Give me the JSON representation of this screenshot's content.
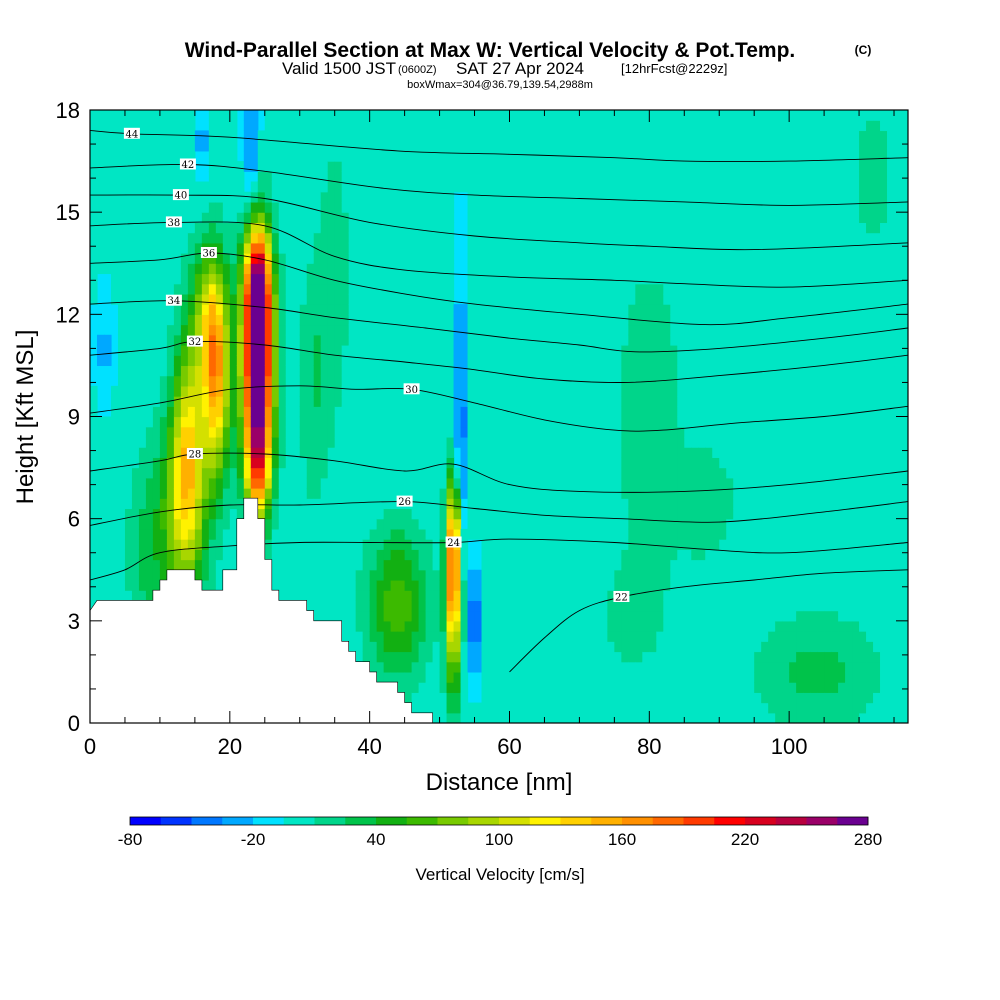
{
  "title": {
    "main": "Wind-Parallel Section at Max W: Vertical Velocity & Pot.Temp.",
    "main_units": "(C)",
    "valid_prefix": "Valid 1500 JST",
    "valid_utc": "(0600Z)",
    "valid_date": "SAT 27 Apr 2024",
    "forecast": "[12hrFcst@2229z]",
    "box_info": "boxWmax=304@36.79,139.54,2988m"
  },
  "chart_data": {
    "type": "heatmap",
    "xlabel": "Distance [nm]",
    "ylabel": "Height [Kft MSL]",
    "xlim": [
      0,
      117
    ],
    "ylim": [
      0,
      18
    ],
    "x_ticks": [
      0,
      20,
      40,
      60,
      80,
      100
    ],
    "x_tick_labels": [
      "0",
      "20",
      "40",
      "60",
      "80",
      "100"
    ],
    "y_ticks": [
      0,
      3,
      6,
      9,
      12,
      15,
      18
    ],
    "y_tick_labels": [
      "0",
      "3",
      "6",
      "9",
      "12",
      "15",
      "18"
    ],
    "colorbar": {
      "label": "Vertical Velocity [cm/s]",
      "tick_labels": [
        "-80",
        "-20",
        "40",
        "100",
        "160",
        "220",
        "280"
      ],
      "colors": [
        "#0000ff",
        "#0033ff",
        "#0077ff",
        "#00a8ff",
        "#00e1ff",
        "#00e6c4",
        "#00d58a",
        "#00c34a",
        "#12b012",
        "#3cba00",
        "#78ca00",
        "#a8d600",
        "#d4e000",
        "#fff200",
        "#ffd000",
        "#ffb000",
        "#ff9000",
        "#ff6800",
        "#ff3a00",
        "#ff0000",
        "#d8001e",
        "#b8003e",
        "#9a0068",
        "#6a0090"
      ]
    },
    "background_color": "#00e1ff",
    "terrain": {
      "label": "terrain",
      "profile": [
        [
          0,
          3.3
        ],
        [
          1,
          3.6
        ],
        [
          3,
          3.6
        ],
        [
          9,
          3.6
        ],
        [
          9,
          3.9
        ],
        [
          10,
          3.9
        ],
        [
          10,
          4.2
        ],
        [
          11,
          4.2
        ],
        [
          11,
          4.5
        ],
        [
          15,
          4.5
        ],
        [
          15,
          4.2
        ],
        [
          16,
          4.2
        ],
        [
          16,
          3.9
        ],
        [
          19,
          3.9
        ],
        [
          19,
          4.5
        ],
        [
          21,
          4.5
        ],
        [
          21,
          6.0
        ],
        [
          22,
          6.0
        ],
        [
          22,
          6.6
        ],
        [
          24,
          6.6
        ],
        [
          24,
          6.0
        ],
        [
          25,
          6.0
        ],
        [
          25,
          4.8
        ],
        [
          26,
          4.8
        ],
        [
          26,
          3.9
        ],
        [
          27,
          3.9
        ],
        [
          27,
          3.6
        ],
        [
          31,
          3.6
        ],
        [
          31,
          3.3
        ],
        [
          32,
          3.3
        ],
        [
          32,
          3.0
        ],
        [
          36,
          3.0
        ],
        [
          36,
          2.4
        ],
        [
          37,
          2.4
        ],
        [
          37,
          2.1
        ],
        [
          38,
          2.1
        ],
        [
          38,
          1.8
        ],
        [
          40,
          1.8
        ],
        [
          40,
          1.5
        ],
        [
          41,
          1.5
        ],
        [
          41,
          1.2
        ],
        [
          44,
          1.2
        ],
        [
          44,
          0.9
        ],
        [
          45,
          0.9
        ],
        [
          45,
          0.6
        ],
        [
          46,
          0.6
        ],
        [
          46,
          0.3
        ],
        [
          49,
          0.3
        ],
        [
          49,
          0.0
        ]
      ]
    },
    "w_features": [
      {
        "x": 24,
        "z": 10.5,
        "sx": 1.5,
        "sz": 2.2,
        "w": 300
      },
      {
        "x": 24,
        "z": 13.0,
        "sx": 1.3,
        "sz": 1.2,
        "w": 150
      },
      {
        "x": 24,
        "z": 7.5,
        "sx": 1.2,
        "sz": 1.2,
        "w": 110
      },
      {
        "x": 18,
        "z": 10.0,
        "sx": 1.4,
        "sz": 2.0,
        "w": 140
      },
      {
        "x": 14,
        "z": 8.0,
        "sx": 1.6,
        "sz": 2.2,
        "w": 110
      },
      {
        "x": 17,
        "z": 12.0,
        "sx": 1.8,
        "sz": 1.5,
        "w": 75
      },
      {
        "x": 13,
        "z": 6.0,
        "sx": 2.5,
        "sz": 2.0,
        "w": 65
      },
      {
        "x": 52,
        "z": 5.0,
        "sx": 0.7,
        "sz": 1.5,
        "w": 165
      },
      {
        "x": 52,
        "z": 3.0,
        "sx": 0.8,
        "sz": 1.8,
        "w": 90
      },
      {
        "x": 44,
        "z": 3.5,
        "sx": 3.0,
        "sz": 1.5,
        "w": 65
      },
      {
        "x": 23,
        "z": 17.0,
        "sx": 0.8,
        "sz": 1.5,
        "w": -45
      },
      {
        "x": 16,
        "z": 17.2,
        "sx": 0.6,
        "sz": 1.0,
        "w": -30
      },
      {
        "x": 53,
        "z": 8.5,
        "sx": 0.5,
        "sz": 3.5,
        "w": -60
      },
      {
        "x": 55,
        "z": 3.0,
        "sx": 0.5,
        "sz": 1.2,
        "w": -70
      },
      {
        "x": 2,
        "z": 11.0,
        "sx": 1.0,
        "sz": 1.2,
        "w": -25
      },
      {
        "x": 32,
        "z": 10.0,
        "sx": 1.5,
        "sz": 2.5,
        "w": 25
      },
      {
        "x": 35,
        "z": 13.0,
        "sx": 1.5,
        "sz": 3.0,
        "w": 20
      },
      {
        "x": 80,
        "z": 9.0,
        "sx": 3.0,
        "sz": 3.0,
        "w": 25
      },
      {
        "x": 88,
        "z": 6.5,
        "sx": 3.0,
        "sz": 1.2,
        "w": 22
      },
      {
        "x": 104,
        "z": 1.5,
        "sx": 6.0,
        "sz": 1.2,
        "w": 30
      },
      {
        "x": 112,
        "z": 16.0,
        "sx": 2.0,
        "sz": 1.5,
        "w": 20
      },
      {
        "x": 77,
        "z": 3.0,
        "sx": 5.0,
        "sz": 1.5,
        "w": 12
      },
      {
        "x": 8,
        "z": 5.0,
        "sx": 2.0,
        "sz": 2.0,
        "w": 25
      }
    ],
    "theta_contours": [
      {
        "label": "22",
        "label_at": [
          76,
          3.7
        ],
        "points": [
          [
            60,
            1.5
          ],
          [
            65,
            2.5
          ],
          [
            70,
            3.3
          ],
          [
            76,
            3.7
          ],
          [
            85,
            4.0
          ],
          [
            95,
            4.2
          ],
          [
            105,
            4.4
          ],
          [
            117,
            4.5
          ]
        ]
      },
      {
        "label": "24",
        "label_at": [
          52,
          5.3
        ],
        "points": [
          [
            0,
            4.2
          ],
          [
            5,
            4.5
          ],
          [
            10,
            5.0
          ],
          [
            20,
            5.2
          ],
          [
            30,
            5.3
          ],
          [
            40,
            5.3
          ],
          [
            52,
            5.3
          ],
          [
            60,
            5.4
          ],
          [
            75,
            5.3
          ],
          [
            88,
            5.1
          ],
          [
            100,
            5.0
          ],
          [
            117,
            5.3
          ]
        ]
      },
      {
        "label": "26",
        "label_at": [
          45,
          6.5
        ],
        "points": [
          [
            0,
            5.8
          ],
          [
            10,
            6.2
          ],
          [
            20,
            6.4
          ],
          [
            30,
            6.4
          ],
          [
            45,
            6.5
          ],
          [
            55,
            6.3
          ],
          [
            65,
            6.1
          ],
          [
            76,
            6.0
          ],
          [
            90,
            5.9
          ],
          [
            105,
            6.2
          ],
          [
            117,
            6.5
          ]
        ]
      },
      {
        "label": "28",
        "label_at": [
          15,
          7.9
        ],
        "points": [
          [
            0,
            7.4
          ],
          [
            10,
            7.7
          ],
          [
            15,
            7.9
          ],
          [
            25,
            7.9
          ],
          [
            35,
            7.7
          ],
          [
            45,
            7.4
          ],
          [
            52,
            7.6
          ],
          [
            60,
            7.0
          ],
          [
            70,
            6.8
          ],
          [
            85,
            6.8
          ],
          [
            100,
            7.0
          ],
          [
            117,
            7.4
          ]
        ]
      },
      {
        "label": "30",
        "label_at": [
          46,
          9.8
        ],
        "points": [
          [
            0,
            9.1
          ],
          [
            10,
            9.4
          ],
          [
            20,
            9.8
          ],
          [
            30,
            9.9
          ],
          [
            38,
            9.8
          ],
          [
            46,
            9.8
          ],
          [
            55,
            9.4
          ],
          [
            65,
            8.9
          ],
          [
            75,
            8.6
          ],
          [
            82,
            8.6
          ],
          [
            92,
            8.8
          ],
          [
            105,
            9.0
          ],
          [
            117,
            9.3
          ]
        ]
      },
      {
        "label": "32",
        "label_at": [
          15,
          11.2
        ],
        "points": [
          [
            0,
            10.8
          ],
          [
            10,
            11.0
          ],
          [
            15,
            11.2
          ],
          [
            25,
            11.1
          ],
          [
            35,
            10.8
          ],
          [
            45,
            10.6
          ],
          [
            54,
            10.4
          ],
          [
            65,
            10.1
          ],
          [
            77,
            10.0
          ],
          [
            90,
            10.2
          ],
          [
            105,
            10.5
          ],
          [
            117,
            10.8
          ]
        ]
      },
      {
        "label": "34",
        "label_at": [
          12,
          12.4
        ],
        "points": [
          [
            0,
            12.3
          ],
          [
            12,
            12.4
          ],
          [
            25,
            12.2
          ],
          [
            35,
            11.9
          ],
          [
            48,
            11.6
          ],
          [
            60,
            11.3
          ],
          [
            70,
            11.1
          ],
          [
            78,
            10.9
          ],
          [
            90,
            11.0
          ],
          [
            105,
            11.3
          ],
          [
            117,
            11.6
          ]
        ]
      },
      {
        "label": "36",
        "label_at": [
          17,
          13.8
        ],
        "points": [
          [
            0,
            13.5
          ],
          [
            10,
            13.6
          ],
          [
            17,
            13.8
          ],
          [
            25,
            13.6
          ],
          [
            35,
            13.0
          ],
          [
            45,
            12.6
          ],
          [
            55,
            12.3
          ],
          [
            70,
            12.0
          ],
          [
            88,
            11.7
          ],
          [
            100,
            11.9
          ],
          [
            117,
            12.3
          ]
        ]
      },
      {
        "label": "38",
        "label_at": [
          12,
          14.7
        ],
        "points": [
          [
            0,
            14.6
          ],
          [
            12,
            14.7
          ],
          [
            25,
            14.6
          ],
          [
            35,
            13.7
          ],
          [
            45,
            13.3
          ],
          [
            60,
            13.1
          ],
          [
            75,
            13.0
          ],
          [
            85,
            12.9
          ],
          [
            100,
            12.8
          ],
          [
            117,
            13.0
          ]
        ]
      },
      {
        "label": "40",
        "label_at": [
          13,
          15.5
        ],
        "points": [
          [
            0,
            15.5
          ],
          [
            13,
            15.5
          ],
          [
            25,
            15.4
          ],
          [
            40,
            14.7
          ],
          [
            55,
            14.3
          ],
          [
            70,
            14.1
          ],
          [
            80,
            14.0
          ],
          [
            95,
            13.9
          ],
          [
            117,
            14.1
          ]
        ]
      },
      {
        "label": "42",
        "label_at": [
          14,
          16.4
        ],
        "points": [
          [
            0,
            16.3
          ],
          [
            14,
            16.4
          ],
          [
            25,
            16.2
          ],
          [
            42,
            15.7
          ],
          [
            55,
            15.5
          ],
          [
            70,
            15.4
          ],
          [
            85,
            15.3
          ],
          [
            100,
            15.2
          ],
          [
            117,
            15.3
          ]
        ]
      },
      {
        "label": "44",
        "label_at": [
          6,
          17.3
        ],
        "points": [
          [
            0,
            17.4
          ],
          [
            6,
            17.3
          ],
          [
            20,
            17.2
          ],
          [
            44,
            16.8
          ],
          [
            60,
            16.7
          ],
          [
            75,
            16.6
          ],
          [
            85,
            16.5
          ],
          [
            100,
            16.5
          ],
          [
            117,
            16.6
          ]
        ]
      }
    ]
  }
}
